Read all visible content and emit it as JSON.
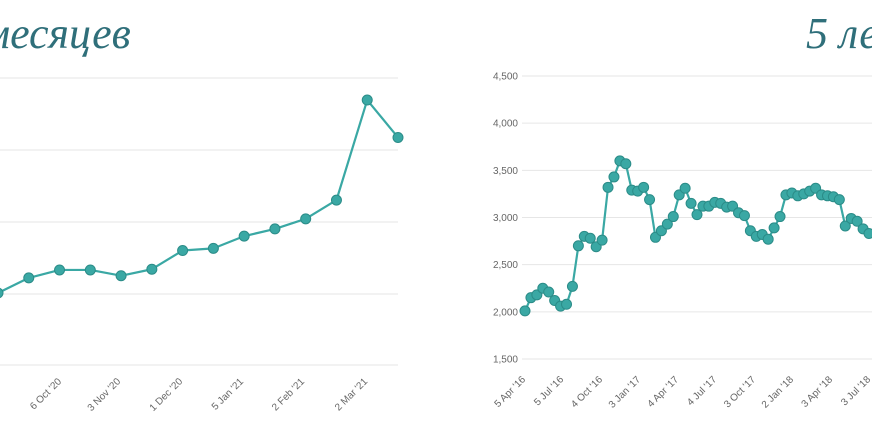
{
  "titles": {
    "left": "месяцев",
    "right": "5 ле"
  },
  "colors": {
    "line": "#3aa8a4",
    "marker": "#3aa8a4",
    "title": "#2f6f7a",
    "grid": "#e6e6e6"
  },
  "chart_data": [
    {
      "type": "line",
      "title": "месяцев",
      "xlabel": "",
      "ylabel": "",
      "grid": true,
      "legend": "none",
      "x_ticks": [
        "6 Oct '20",
        "3 Nov '20",
        "1 Dec '20",
        "5 Jan '21",
        "2 Feb '21",
        "2 Mar '21"
      ],
      "series": [
        {
          "values": [
            100,
            121,
            132,
            132,
            124,
            133,
            159,
            162,
            179,
            189,
            203,
            229,
            368,
            316
          ]
        }
      ]
    },
    {
      "type": "line",
      "title": "5 ле",
      "xlabel": "",
      "ylabel": "",
      "grid": true,
      "legend": "none",
      "y_ticks": [
        "1,500",
        "2,000",
        "2,500",
        "3,000",
        "3,500",
        "4,000",
        "4,500"
      ],
      "ylim": [
        1500,
        4500
      ],
      "x_ticks": [
        "5 Apr '16",
        "5 Jul '16",
        "4 Oct '16",
        "3 Jan '17",
        "4 Apr '17",
        "4 Jul '17",
        "3 Oct '17",
        "2 Jan '18",
        "3 Apr '18",
        "3 Jul '18"
      ],
      "series": [
        {
          "values": [
            2010,
            2150,
            2180,
            2250,
            2210,
            2120,
            2060,
            2080,
            2270,
            2700,
            2800,
            2780,
            2690,
            2760,
            3320,
            3430,
            3600,
            3570,
            3290,
            3280,
            3320,
            3190,
            2790,
            2860,
            2930,
            3010,
            3240,
            3310,
            3150,
            3030,
            3120,
            3120,
            3160,
            3150,
            3110,
            3120,
            3050,
            3020,
            2860,
            2800,
            2820,
            2770,
            2890,
            3010,
            3240,
            3260,
            3230,
            3250,
            3280,
            3310,
            3240,
            3230,
            3220,
            3190,
            2910,
            2990,
            2960,
            2880,
            2830
          ]
        }
      ]
    }
  ]
}
